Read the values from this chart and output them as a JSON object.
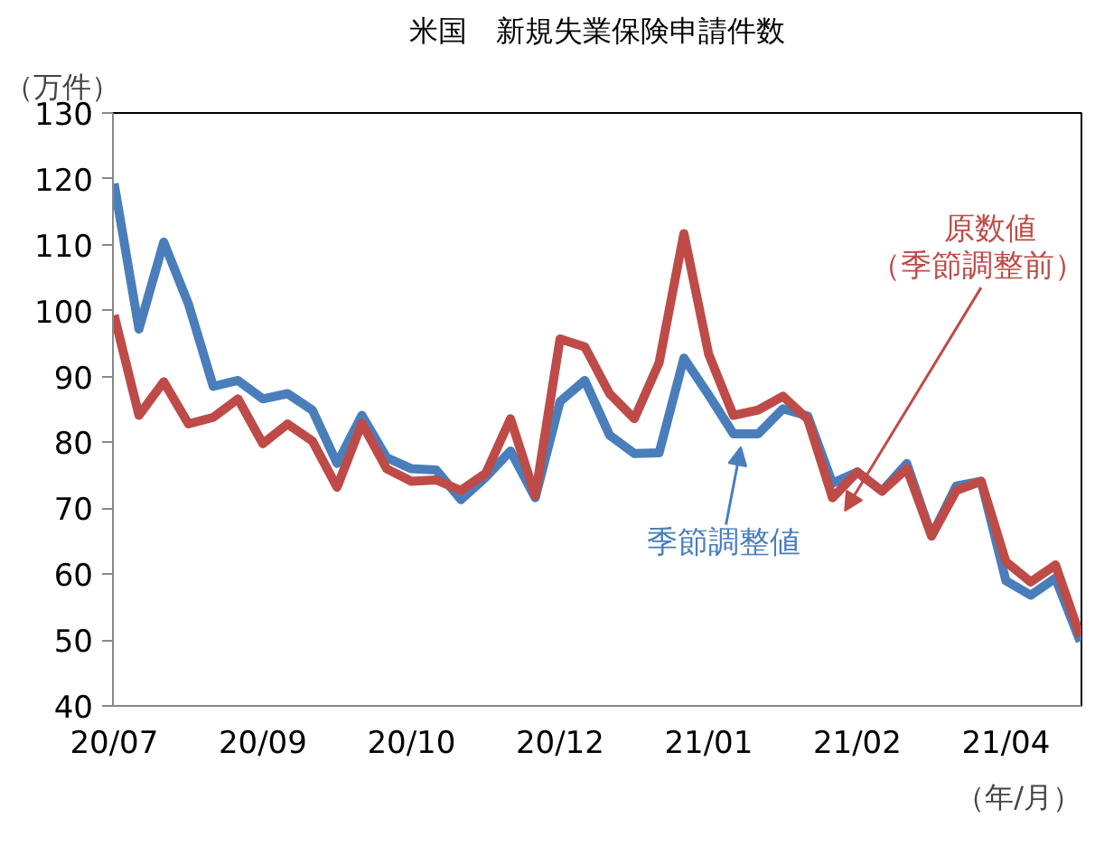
{
  "chart_data": {
    "type": "line",
    "title": "米国　新規失業保険申請件数",
    "ylabel": "（万件）",
    "xlabel": "（年/月）",
    "categories": [
      "20/07",
      null,
      null,
      null,
      null,
      null,
      "20/09",
      null,
      null,
      null,
      null,
      null,
      "20/10",
      null,
      null,
      null,
      null,
      null,
      "20/12",
      null,
      null,
      null,
      null,
      null,
      "21/01",
      null,
      null,
      null,
      null,
      null,
      "21/02",
      null,
      null,
      null,
      null,
      null,
      "21/04",
      null,
      null,
      null
    ],
    "series": [
      {
        "name": "季節調整値",
        "color": "#4a7ebb",
        "values": [
          119.3,
          97.2,
          110.4,
          101.0,
          88.5,
          89.4,
          86.6,
          87.4,
          84.9,
          76.8,
          84.1,
          77.7,
          76.0,
          75.8,
          71.3,
          74.7,
          78.7,
          71.6,
          86.2,
          89.4,
          81.1,
          78.3,
          78.4,
          92.8,
          87.2,
          81.3,
          81.3,
          85.1,
          84.0,
          73.8,
          75.5,
          72.6,
          76.8,
          65.8,
          73.4,
          74.1,
          59.0,
          56.8,
          59.4,
          49.8
        ]
      },
      {
        "name": "原数値（季節調整前）",
        "color": "#be4b48",
        "values": [
          99.3,
          84.1,
          89.2,
          82.8,
          83.8,
          86.6,
          79.8,
          82.8,
          80.2,
          73.2,
          82.9,
          76.0,
          74.1,
          74.3,
          72.7,
          75.3,
          83.6,
          71.9,
          95.7,
          94.5,
          87.4,
          83.6,
          92.1,
          111.7,
          93.4,
          84.1,
          84.9,
          87.0,
          83.5,
          71.6,
          75.5,
          72.6,
          76.0,
          65.8,
          72.7,
          74.1,
          61.9,
          58.8,
          61.4,
          50.6
        ]
      }
    ],
    "ylim": [
      40,
      130
    ],
    "yticks": [
      40,
      50,
      60,
      70,
      80,
      90,
      100,
      110,
      120,
      130
    ],
    "grid": false,
    "marker": "none",
    "line_style": "solid"
  }
}
